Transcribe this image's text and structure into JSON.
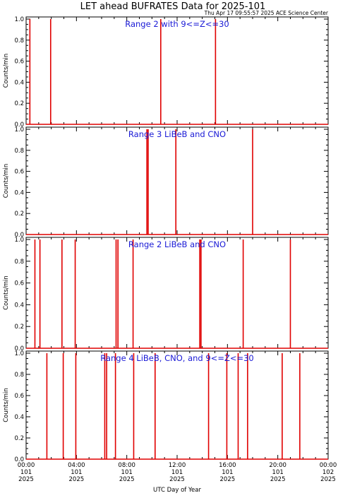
{
  "header": {
    "title": "LET ahead BUFRATES Data for 2025-101",
    "timestamp": "Thu Apr 17 09:55:57 2025 ACE Science Center"
  },
  "x_axis_label": "UTC Day of Year",
  "x_ticks": [
    {
      "time": "00:00",
      "day": "101",
      "year": "2025"
    },
    {
      "time": "04:00",
      "day": "101",
      "year": "2025"
    },
    {
      "time": "08:00",
      "day": "101",
      "year": "2025"
    },
    {
      "time": "12:00",
      "day": "101",
      "year": "2025"
    },
    {
      "time": "16:00",
      "day": "101",
      "year": "2025"
    },
    {
      "time": "20:00",
      "day": "101",
      "year": "2025"
    },
    {
      "time": "00:00",
      "day": "102",
      "year": "2025"
    }
  ],
  "y_ticks": [
    "0.0",
    "0.2",
    "0.4",
    "0.6",
    "0.8",
    "1.0"
  ],
  "colors": {
    "data": "#e00000",
    "panel_title": "#1a1ad6",
    "axes": "#000000"
  },
  "chart_data": [
    {
      "type": "line",
      "title": "Range 2 with 9<=Z<=30",
      "ylabel": "Counts/min",
      "xlim": [
        0,
        24
      ],
      "ylim": [
        0,
        1
      ],
      "spikes_hours": [
        0.3,
        1.95,
        10.7,
        15.05
      ]
    },
    {
      "type": "line",
      "title": "Range 3 LiBeB and CNO",
      "ylabel": "Counts/min",
      "xlim": [
        0,
        24
      ],
      "ylim": [
        0,
        1
      ],
      "spikes_hours": [
        9.6,
        9.7,
        11.9,
        18.0
      ]
    },
    {
      "type": "line",
      "title": "Range 2 LiBeB and CNO",
      "ylabel": "Counts/min",
      "xlim": [
        0,
        24
      ],
      "ylim": [
        0,
        1
      ],
      "spikes_hours": [
        0.7,
        1.1,
        2.85,
        3.9,
        7.15,
        7.3,
        8.5,
        13.8,
        13.9,
        17.25,
        21.0
      ]
    },
    {
      "type": "line",
      "title": "Range 4 LiBeB, CNO, and 9<=Z<=30",
      "ylabel": "Counts/min",
      "xlim": [
        0,
        24
      ],
      "ylim": [
        0,
        1
      ],
      "spikes_hours": [
        1.65,
        2.95,
        3.95,
        6.25,
        6.4,
        7.1,
        8.55,
        10.25,
        14.5,
        15.95,
        16.85,
        17.6,
        20.35,
        21.75
      ]
    }
  ]
}
